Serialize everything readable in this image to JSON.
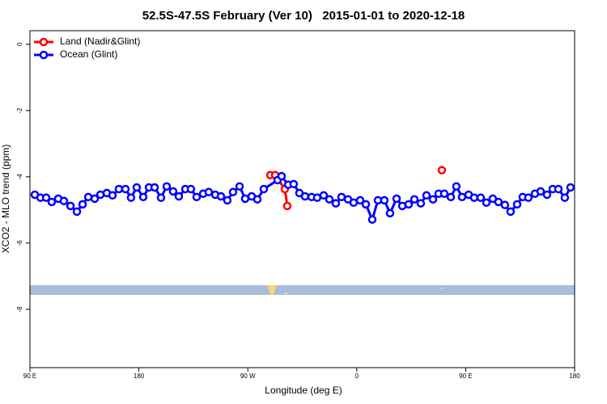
{
  "chart_data": {
    "type": "line",
    "title": "52.5S-47.5S February (Ver 10)   2015-01-01 to 2020-12-18",
    "xlabel": "Longitude (deg E)",
    "ylabel": "XCO2 - MLO trend (ppm)",
    "xlim": [
      90,
      540
    ],
    "ylim": [
      -9.76,
      0.41
    ],
    "xticks": [
      {
        "value": 90,
        "label": "90 E"
      },
      {
        "value": 180,
        "label": "180"
      },
      {
        "value": 270,
        "label": "90 W"
      },
      {
        "value": 360,
        "label": "0"
      },
      {
        "value": 450,
        "label": "90 E"
      },
      {
        "value": 540,
        "label": "180"
      }
    ],
    "yticks": [
      0,
      -2,
      -4,
      -6,
      -8
    ],
    "legend": "top-left",
    "series": [
      {
        "name": "Land (Nadir&Glint)",
        "color": "#ff0000",
        "x": [
          288.6,
          292.6,
          300.6,
          302.6,
          307.6,
          430.3
        ],
        "values": [
          -3.95,
          -3.95,
          -4.37,
          -4.88,
          null,
          -3.8
        ]
      },
      {
        "name": "Ocean (Glint)",
        "color": "#0000ff",
        "x": [
          94.0,
          98.7,
          103.4,
          108.0,
          113.4,
          118.1,
          123.5,
          128.8,
          133.5,
          138.2,
          143.5,
          148.2,
          153.5,
          158.2,
          163.5,
          168.9,
          173.5,
          178.2,
          183.6,
          188.3,
          193.0,
          198.3,
          203.0,
          208.3,
          213.0,
          218.4,
          223.0,
          227.7,
          233.1,
          237.7,
          243.1,
          247.8,
          253.1,
          257.8,
          263.2,
          267.8,
          273.2,
          277.9,
          283.2,
          294.6,
          297.9,
          303.3,
          307.9,
          312.6,
          317.3,
          322.7,
          327.3,
          332.7,
          337.4,
          342.7,
          347.4,
          352.8,
          357.4,
          362.8,
          367.5,
          372.8,
          377.5,
          382.8,
          387.5,
          392.9,
          397.6,
          402.9,
          407.6,
          412.9,
          417.6,
          423.0,
          427.6,
          432.3,
          437.7,
          442.3,
          447.0,
          452.4,
          457.0,
          462.4,
          467.1,
          472.4,
          477.1,
          482.4,
          487.1,
          492.5,
          497.1,
          501.8,
          507.2,
          511.9,
          517.2,
          521.9,
          526.6,
          531.9,
          536.6
        ],
        "values": [
          -4.54,
          -4.63,
          -4.63,
          -4.76,
          -4.66,
          -4.73,
          -4.88,
          -5.05,
          -4.83,
          -4.61,
          -4.66,
          -4.54,
          -4.49,
          -4.56,
          -4.37,
          -4.37,
          -4.63,
          -4.32,
          -4.61,
          -4.32,
          -4.32,
          -4.63,
          -4.29,
          -4.44,
          -4.59,
          -4.37,
          -4.37,
          -4.61,
          -4.51,
          -4.46,
          -4.54,
          -4.59,
          -4.71,
          -4.46,
          -4.29,
          -4.66,
          -4.59,
          -4.68,
          -4.37,
          -4.1,
          -3.98,
          -4.24,
          -4.22,
          -4.49,
          -4.59,
          -4.61,
          -4.63,
          -4.56,
          -4.68,
          -4.8,
          -4.61,
          -4.68,
          -4.78,
          -4.71,
          -4.83,
          -5.29,
          -4.71,
          -4.71,
          -5.1,
          -4.66,
          -4.88,
          -4.83,
          -4.68,
          -4.8,
          -4.56,
          -4.68,
          -4.51,
          -4.51,
          -4.61,
          -4.29,
          -4.61,
          -4.54,
          -4.63,
          -4.63,
          -4.78,
          -4.66,
          -4.76,
          -4.85,
          -5.05,
          -4.83,
          -4.61,
          -4.63,
          -4.51,
          -4.44,
          -4.54,
          -4.37,
          -4.37,
          -4.63,
          -4.32
        ]
      }
    ]
  }
}
